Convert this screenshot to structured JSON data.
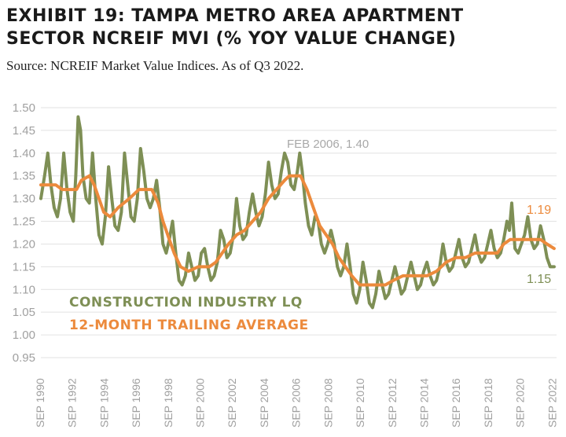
{
  "header": {
    "title_line1": "EXHIBIT 19: TAMPA METRO AREA APARTMENT",
    "title_line2": "SECTOR NCREIF MVI (% YOY VALUE CHANGE)",
    "subtitle": "Source: NCREIF Market Value Indices. As of Q3 2022."
  },
  "colors": {
    "lq": "#7e8f55",
    "avg": "#ec8a3c",
    "grid": "#e2e2e2",
    "tick": "#a0a0a0"
  },
  "chart_data": {
    "type": "line",
    "title": "EXHIBIT 19: TAMPA METRO AREA APARTMENT SECTOR NCREIF MVI (% YOY VALUE CHANGE)",
    "ylim": [
      0.95,
      1.5
    ],
    "yticks": [
      1.5,
      1.45,
      1.4,
      1.35,
      1.3,
      1.25,
      1.2,
      1.15,
      1.1,
      1.05,
      1.0,
      0.95
    ],
    "ytick_labels": [
      "1.50",
      "1.45",
      "1.40",
      "1.35",
      "1.30",
      "1.25",
      "1.20",
      "1.15",
      "1.10",
      "1.05",
      "1.00",
      "0.95"
    ],
    "xlim": [
      1990.67,
      2022.9
    ],
    "xticks": [
      1990.67,
      1992.67,
      1994.67,
      1996.67,
      1998.67,
      2000.67,
      2002.67,
      2004.67,
      2006.67,
      2008.67,
      2010.67,
      2012.67,
      2014.67,
      2016.67,
      2018.67,
      2020.67,
      2022.67
    ],
    "xtick_labels": [
      "SEP 1990",
      "SEP 1992",
      "SEP 1994",
      "SEP 1996",
      "SEP 1998",
      "SEP 2000",
      "SEP 2002",
      "SEP 2004",
      "SEP 2006",
      "SEP 2008",
      "SEP 2010",
      "SEP 2012",
      "SEP 2014",
      "SEP 2016",
      "SEP 2018",
      "SEP 2020",
      "SEP 2022"
    ],
    "legend_position": "bottom-left",
    "series": [
      {
        "name": "CONSTRUCTION INDUSTRY LQ",
        "color": "#7e8f55",
        "points": [
          [
            1990.67,
            1.3
          ],
          [
            1990.9,
            1.35
          ],
          [
            1991.1,
            1.4
          ],
          [
            1991.3,
            1.33
          ],
          [
            1991.5,
            1.28
          ],
          [
            1991.7,
            1.26
          ],
          [
            1991.9,
            1.3
          ],
          [
            1992.1,
            1.4
          ],
          [
            1992.3,
            1.32
          ],
          [
            1992.5,
            1.27
          ],
          [
            1992.7,
            1.25
          ],
          [
            1992.85,
            1.35
          ],
          [
            1993.0,
            1.48
          ],
          [
            1993.15,
            1.45
          ],
          [
            1993.3,
            1.35
          ],
          [
            1993.5,
            1.3
          ],
          [
            1993.7,
            1.29
          ],
          [
            1993.9,
            1.4
          ],
          [
            1994.1,
            1.3
          ],
          [
            1994.3,
            1.22
          ],
          [
            1994.5,
            1.2
          ],
          [
            1994.7,
            1.26
          ],
          [
            1994.9,
            1.37
          ],
          [
            1995.1,
            1.3
          ],
          [
            1995.3,
            1.24
          ],
          [
            1995.5,
            1.23
          ],
          [
            1995.7,
            1.27
          ],
          [
            1995.9,
            1.4
          ],
          [
            1996.1,
            1.33
          ],
          [
            1996.3,
            1.26
          ],
          [
            1996.5,
            1.25
          ],
          [
            1996.7,
            1.3
          ],
          [
            1996.9,
            1.41
          ],
          [
            1997.1,
            1.36
          ],
          [
            1997.3,
            1.3
          ],
          [
            1997.5,
            1.28
          ],
          [
            1997.7,
            1.3
          ],
          [
            1997.9,
            1.34
          ],
          [
            1998.1,
            1.28
          ],
          [
            1998.3,
            1.2
          ],
          [
            1998.5,
            1.18
          ],
          [
            1998.7,
            1.21
          ],
          [
            1998.9,
            1.25
          ],
          [
            1999.1,
            1.18
          ],
          [
            1999.3,
            1.12
          ],
          [
            1999.5,
            1.11
          ],
          [
            1999.7,
            1.13
          ],
          [
            1999.9,
            1.18
          ],
          [
            2000.1,
            1.15
          ],
          [
            2000.3,
            1.12
          ],
          [
            2000.5,
            1.13
          ],
          [
            2000.7,
            1.18
          ],
          [
            2000.9,
            1.19
          ],
          [
            2001.1,
            1.15
          ],
          [
            2001.3,
            1.12
          ],
          [
            2001.5,
            1.13
          ],
          [
            2001.7,
            1.16
          ],
          [
            2001.9,
            1.23
          ],
          [
            2002.1,
            1.21
          ],
          [
            2002.3,
            1.17
          ],
          [
            2002.5,
            1.18
          ],
          [
            2002.7,
            1.22
          ],
          [
            2002.9,
            1.3
          ],
          [
            2003.1,
            1.24
          ],
          [
            2003.3,
            1.21
          ],
          [
            2003.5,
            1.22
          ],
          [
            2003.7,
            1.27
          ],
          [
            2003.9,
            1.31
          ],
          [
            2004.1,
            1.27
          ],
          [
            2004.3,
            1.24
          ],
          [
            2004.5,
            1.26
          ],
          [
            2004.7,
            1.31
          ],
          [
            2004.9,
            1.38
          ],
          [
            2005.1,
            1.33
          ],
          [
            2005.3,
            1.3
          ],
          [
            2005.5,
            1.31
          ],
          [
            2005.7,
            1.36
          ],
          [
            2005.9,
            1.4
          ],
          [
            2006.1,
            1.38
          ],
          [
            2006.3,
            1.33
          ],
          [
            2006.5,
            1.32
          ],
          [
            2006.7,
            1.36
          ],
          [
            2006.85,
            1.4
          ],
          [
            2007.0,
            1.36
          ],
          [
            2007.2,
            1.29
          ],
          [
            2007.4,
            1.24
          ],
          [
            2007.6,
            1.22
          ],
          [
            2007.8,
            1.26
          ],
          [
            2008.0,
            1.25
          ],
          [
            2008.2,
            1.2
          ],
          [
            2008.4,
            1.18
          ],
          [
            2008.6,
            1.2
          ],
          [
            2008.8,
            1.23
          ],
          [
            2009.0,
            1.2
          ],
          [
            2009.2,
            1.15
          ],
          [
            2009.4,
            1.13
          ],
          [
            2009.6,
            1.15
          ],
          [
            2009.8,
            1.2
          ],
          [
            2010.0,
            1.15
          ],
          [
            2010.2,
            1.09
          ],
          [
            2010.4,
            1.07
          ],
          [
            2010.6,
            1.1
          ],
          [
            2010.8,
            1.16
          ],
          [
            2011.0,
            1.12
          ],
          [
            2011.2,
            1.07
          ],
          [
            2011.4,
            1.06
          ],
          [
            2011.6,
            1.09
          ],
          [
            2011.8,
            1.14
          ],
          [
            2012.0,
            1.11
          ],
          [
            2012.2,
            1.08
          ],
          [
            2012.4,
            1.09
          ],
          [
            2012.6,
            1.12
          ],
          [
            2012.8,
            1.15
          ],
          [
            2013.0,
            1.12
          ],
          [
            2013.2,
            1.09
          ],
          [
            2013.4,
            1.1
          ],
          [
            2013.6,
            1.13
          ],
          [
            2013.8,
            1.16
          ],
          [
            2014.0,
            1.13
          ],
          [
            2014.2,
            1.1
          ],
          [
            2014.4,
            1.11
          ],
          [
            2014.6,
            1.14
          ],
          [
            2014.8,
            1.16
          ],
          [
            2015.0,
            1.13
          ],
          [
            2015.2,
            1.11
          ],
          [
            2015.4,
            1.12
          ],
          [
            2015.6,
            1.15
          ],
          [
            2015.8,
            1.2
          ],
          [
            2016.0,
            1.16
          ],
          [
            2016.2,
            1.14
          ],
          [
            2016.4,
            1.15
          ],
          [
            2016.6,
            1.18
          ],
          [
            2016.8,
            1.21
          ],
          [
            2017.0,
            1.17
          ],
          [
            2017.2,
            1.15
          ],
          [
            2017.4,
            1.16
          ],
          [
            2017.6,
            1.19
          ],
          [
            2017.8,
            1.22
          ],
          [
            2018.0,
            1.18
          ],
          [
            2018.2,
            1.16
          ],
          [
            2018.4,
            1.17
          ],
          [
            2018.6,
            1.2
          ],
          [
            2018.8,
            1.23
          ],
          [
            2019.0,
            1.19
          ],
          [
            2019.2,
            1.17
          ],
          [
            2019.4,
            1.18
          ],
          [
            2019.6,
            1.21
          ],
          [
            2019.8,
            1.25
          ],
          [
            2019.95,
            1.23
          ],
          [
            2020.1,
            1.29
          ],
          [
            2020.3,
            1.19
          ],
          [
            2020.5,
            1.18
          ],
          [
            2020.7,
            1.2
          ],
          [
            2020.9,
            1.22
          ],
          [
            2021.1,
            1.26
          ],
          [
            2021.3,
            1.21
          ],
          [
            2021.5,
            1.19
          ],
          [
            2021.7,
            1.2
          ],
          [
            2021.9,
            1.24
          ],
          [
            2022.1,
            1.21
          ],
          [
            2022.3,
            1.17
          ],
          [
            2022.5,
            1.15
          ],
          [
            2022.75,
            1.15
          ]
        ]
      },
      {
        "name": "12-MONTH TRAILING AVERAGE",
        "color": "#ec8a3c",
        "points": [
          [
            1990.67,
            1.33
          ],
          [
            1991.6,
            1.33
          ],
          [
            1992.0,
            1.32
          ],
          [
            1992.9,
            1.32
          ],
          [
            1993.2,
            1.34
          ],
          [
            1993.7,
            1.35
          ],
          [
            1994.0,
            1.33
          ],
          [
            1994.6,
            1.27
          ],
          [
            1995.0,
            1.26
          ],
          [
            1995.5,
            1.28
          ],
          [
            1996.2,
            1.3
          ],
          [
            1996.8,
            1.32
          ],
          [
            1997.6,
            1.32
          ],
          [
            1998.0,
            1.29
          ],
          [
            1998.3,
            1.25
          ],
          [
            1998.7,
            1.21
          ],
          [
            1999.0,
            1.18
          ],
          [
            1999.4,
            1.15
          ],
          [
            1999.9,
            1.14
          ],
          [
            2000.5,
            1.15
          ],
          [
            2001.2,
            1.15
          ],
          [
            2001.6,
            1.16
          ],
          [
            2002.0,
            1.18
          ],
          [
            2002.4,
            1.2
          ],
          [
            2002.9,
            1.22
          ],
          [
            2003.4,
            1.23
          ],
          [
            2003.9,
            1.25
          ],
          [
            2004.4,
            1.27
          ],
          [
            2004.9,
            1.3
          ],
          [
            2005.4,
            1.32
          ],
          [
            2005.9,
            1.34
          ],
          [
            2006.2,
            1.35
          ],
          [
            2006.9,
            1.35
          ],
          [
            2007.3,
            1.32
          ],
          [
            2007.7,
            1.28
          ],
          [
            2008.1,
            1.24
          ],
          [
            2008.5,
            1.22
          ],
          [
            2008.9,
            1.2
          ],
          [
            2009.3,
            1.17
          ],
          [
            2009.7,
            1.15
          ],
          [
            2010.1,
            1.13
          ],
          [
            2010.6,
            1.11
          ],
          [
            2011.0,
            1.11
          ],
          [
            2012.2,
            1.11
          ],
          [
            2012.7,
            1.12
          ],
          [
            2013.3,
            1.13
          ],
          [
            2014.8,
            1.13
          ],
          [
            2015.4,
            1.14
          ],
          [
            2016.0,
            1.16
          ],
          [
            2016.6,
            1.17
          ],
          [
            2017.2,
            1.17
          ],
          [
            2017.8,
            1.18
          ],
          [
            2019.2,
            1.18
          ],
          [
            2019.6,
            1.2
          ],
          [
            2020.0,
            1.21
          ],
          [
            2021.9,
            1.21
          ],
          [
            2022.3,
            1.2
          ],
          [
            2022.75,
            1.19
          ]
        ]
      }
    ],
    "annotations": [
      {
        "text": "FEB 2006, 1.40",
        "color": "#a8a8a8"
      },
      {
        "text": "1.19",
        "color": "#ec8a3c"
      },
      {
        "text": "1.15",
        "color": "#7e8f55"
      }
    ]
  }
}
